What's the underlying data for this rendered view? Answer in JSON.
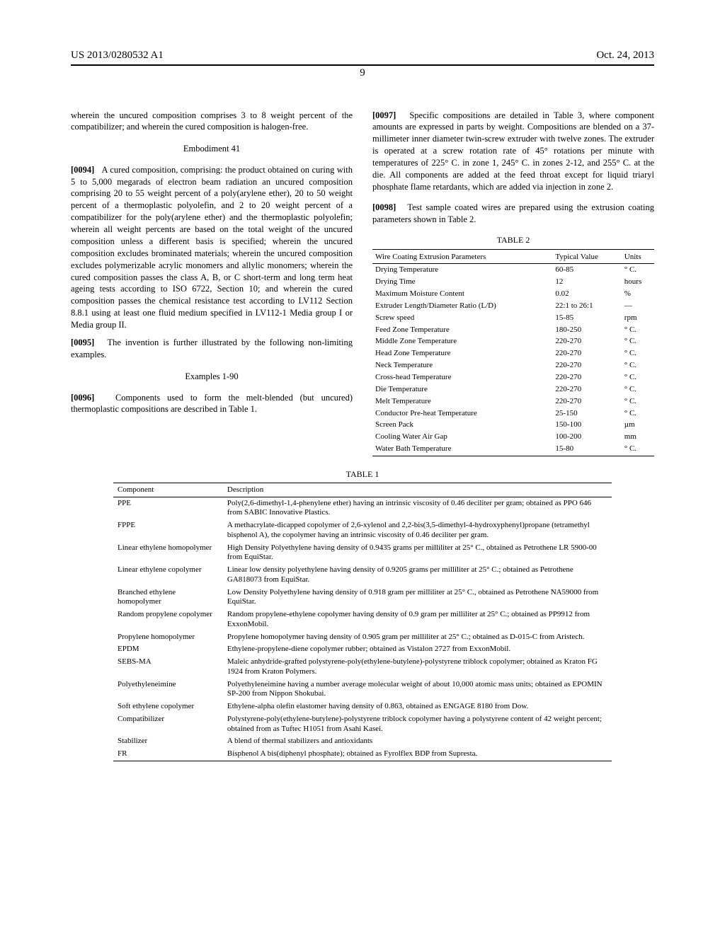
{
  "header": {
    "pub_no": "US 2013/0280532 A1",
    "date": "Oct. 24, 2013",
    "page": "9"
  },
  "left_col": {
    "intro_fragment": "wherein the uncured composition comprises 3 to 8 weight percent of the compatibilizer; and wherein the cured composition is halogen-free.",
    "embodiment_title": "Embodiment 41",
    "p0094_ref": "[0094]",
    "p0094": "A cured composition, comprising: the product obtained on curing with 5 to 5,000 megarads of electron beam radiation an uncured composition comprising 20 to 55 weight percent of a poly(arylene ether), 20 to 50 weight percent of a thermoplastic polyolefin, and 2 to 20 weight percent of a compatibilizer for the poly(arylene ether) and the thermoplastic polyolefin; wherein all weight percents are based on the total weight of the uncured composition unless a different basis is specified; wherein the uncured composition excludes brominated materials; wherein the uncured composition excludes polymerizable acrylic monomers and allylic monomers; wherein the cured composition passes the class A, B, or C short-term and long term heat ageing tests according to ISO 6722, Section 10; and wherein the cured composition passes the chemical resistance test according to LV112 Section 8.8.1 using at least one fluid medium specified in LV112-1 Media group I or Media group II.",
    "p0095_ref": "[0095]",
    "p0095": "The invention is further illustrated by the following non-limiting examples.",
    "examples_title": "Examples 1-90",
    "p0096_ref": "[0096]",
    "p0096": "Components used to form the melt-blended (but uncured) thermoplastic compositions are described in Table 1."
  },
  "right_col": {
    "p0097_ref": "[0097]",
    "p0097": "Specific compositions are detailed in Table 3, where component amounts are expressed in parts by weight. Compositions are blended on a 37-millimeter inner diameter twin-screw extruder with twelve zones. The extruder is operated at a screw rotation rate of 45° rotations per minute with temperatures of 225° C. in zone 1, 245° C. in zones 2-12, and 255° C. at the die. All components are added at the feed throat except for liquid triaryl phosphate flame retardants, which are added via injection in zone 2.",
    "p0098_ref": "[0098]",
    "p0098": "Test sample coated wires are prepared using the extrusion coating parameters shown in Table 2."
  },
  "table2": {
    "caption": "TABLE 2",
    "headers": [
      "Wire Coating Extrusion Parameters",
      "Typical Value",
      "Units"
    ],
    "rows": [
      [
        "Drying Temperature",
        "60-85",
        "° C."
      ],
      [
        "Drying Time",
        "12",
        "hours"
      ],
      [
        "Maximum Moisture Content",
        "0.02",
        "%"
      ],
      [
        "Extruder Length/Diameter Ratio (L/D)",
        "22:1 to 26:1",
        "—"
      ],
      [
        "Screw speed",
        "15-85",
        "rpm"
      ],
      [
        "Feed Zone Temperature",
        "180-250",
        "° C."
      ],
      [
        "Middle Zone Temperature",
        "220-270",
        "° C."
      ],
      [
        "Head Zone Temperature",
        "220-270",
        "° C."
      ],
      [
        "Neck Temperature",
        "220-270",
        "° C."
      ],
      [
        "Cross-head Temperature",
        "220-270",
        "° C."
      ],
      [
        "Die Temperature",
        "220-270",
        "° C."
      ],
      [
        "Melt Temperature",
        "220-270",
        "° C."
      ],
      [
        "Conductor Pre-heat Temperature",
        "25-150",
        "° C."
      ],
      [
        "Screen Pack",
        "150-100",
        "µm"
      ],
      [
        "Cooling Water Air Gap",
        "100-200",
        "mm"
      ],
      [
        "Water Bath Temperature",
        "15-80",
        "° C."
      ]
    ]
  },
  "table1": {
    "caption": "TABLE 1",
    "headers": [
      "Component",
      "Description"
    ],
    "rows": [
      [
        "PPE",
        "Poly(2,6-dimethyl-1,4-phenylene ether) having an intrinsic viscosity of 0.46 deciliter per gram; obtained as PPO 646 from SABIC Innovative Plastics."
      ],
      [
        "FPPE",
        "A methacrylate-dicapped copolymer of 2,6-xylenol and 2,2-bis(3,5-dimethyl-4-hydroxyphenyl)propane (tetramethyl bisphenol A), the copolymer having an intrinsic viscosity of 0.46 deciliter per gram."
      ],
      [
        "Linear ethylene homopolymer",
        "High Density Polyethylene having density of 0.9435 grams per milliliter at 25° C., obtained as Petrothene LR 5900-00 from EquiStar."
      ],
      [
        "Linear ethylene copolymer",
        "Linear low density polyethylene having density of 0.9205 grams per milliliter at 25° C.; obtained as Petrothene GA818073 from EquiStar."
      ],
      [
        "Branched ethylene homopolymer",
        "Low Density Polyethylene having density of 0.918 gram per milliliter at 25° C., obtained as Petrothene NA59000 from EquiStar."
      ],
      [
        "Random propylene copolymer",
        "Random propylene-ethylene copolymer having density of 0.9 gram per milliliter at 25° C.; obtained as PP9912 from ExxonMobil."
      ],
      [
        "Propylene homopolymer",
        "Propylene homopolymer having density of 0.905 gram per milliliter at 25° C.; obtained as D-015-C from Aristech."
      ],
      [
        "EPDM",
        "Ethylene-propylene-diene copolymer rubber; obtained as Vistalon 2727 from ExxonMobil."
      ],
      [
        "SEBS-MA",
        "Maleic anhydride-grafted polystyrene-poly(ethylene-butylene)-polystyrene triblock copolymer; obtained as Kraton FG 1924 from Kraton Polymers."
      ],
      [
        "Polyethyleneimine",
        "Polyethyleneimine having a number average molecular weight of about 10,000 atomic mass units; obtained as EPOMIN SP-200 from Nippon Shokubai."
      ],
      [
        "Soft ethylene copolymer",
        "Ethylene-alpha olefin elastomer having density of 0.863, obtained as ENGAGE 8180 from Dow."
      ],
      [
        "Compatibilizer",
        "Polystyrene-poly(ethylene-butylene)-polystyrene triblock copolymer having a polystyrene content of 42 weight percent; obtained from as Tuftec H1051 from Asahi Kasei."
      ],
      [
        "Stabilizer",
        "A blend of thermal stabilizers and antioxidants"
      ],
      [
        "FR",
        "Bisphenol A bis(diphenyl phosphate); obtained as Fyrolflex BDP from Supresta."
      ]
    ]
  }
}
